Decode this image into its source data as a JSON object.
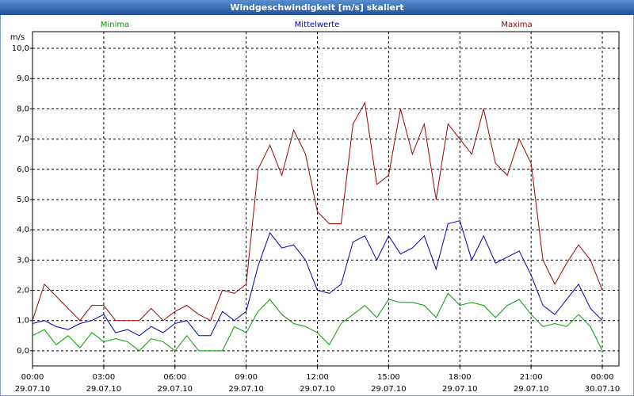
{
  "chart_data": {
    "type": "line",
    "title": "Windgeschwindigkeit [m/s] skaliert",
    "y_label": "m/s",
    "x": [
      0,
      0.5,
      1,
      1.5,
      2,
      2.5,
      3,
      3.5,
      4,
      4.5,
      5,
      5.5,
      6,
      6.5,
      7,
      7.5,
      8,
      8.5,
      9,
      9.5,
      10,
      10.5,
      11,
      11.5,
      12,
      12.5,
      13,
      13.5,
      14,
      14.5,
      15,
      15.5,
      16,
      16.5,
      17,
      17.5,
      18,
      18.5,
      19,
      19.5,
      20,
      20.5,
      21,
      21.5,
      22,
      22.5,
      23,
      23.5,
      24
    ],
    "series": [
      {
        "name": "Minima",
        "color": "#00a000",
        "values": [
          0.5,
          0.7,
          0.2,
          0.5,
          0.1,
          0.6,
          0.3,
          0.4,
          0.3,
          0.0,
          0.4,
          0.3,
          0.0,
          0.5,
          0.0,
          0.0,
          0.0,
          0.8,
          0.6,
          1.3,
          1.7,
          1.2,
          0.9,
          0.8,
          0.6,
          0.2,
          0.9,
          1.2,
          1.5,
          1.1,
          1.7,
          1.6,
          1.6,
          1.5,
          1.1,
          1.9,
          1.5,
          1.6,
          1.5,
          1.1,
          1.5,
          1.7,
          1.2,
          0.8,
          0.9,
          0.8,
          1.2,
          0.8,
          0.0
        ]
      },
      {
        "name": "Mittelwerte",
        "color": "#0000c0",
        "values": [
          0.9,
          1.0,
          0.8,
          0.7,
          0.9,
          1.0,
          1.2,
          0.6,
          0.7,
          0.5,
          0.8,
          0.6,
          0.9,
          1.0,
          0.5,
          0.5,
          1.3,
          1.0,
          1.3,
          2.8,
          3.9,
          3.4,
          3.5,
          3.0,
          2.0,
          1.9,
          2.2,
          3.6,
          3.8,
          3.0,
          3.8,
          3.2,
          3.4,
          3.8,
          2.7,
          4.2,
          4.3,
          3.0,
          3.8,
          2.9,
          3.1,
          3.3,
          2.5,
          1.5,
          1.2,
          1.7,
          2.2,
          1.4,
          1.0
        ]
      },
      {
        "name": "Maxima",
        "color": "#a00000",
        "values": [
          1.0,
          2.2,
          1.8,
          1.4,
          1.0,
          1.5,
          1.5,
          1.0,
          1.0,
          1.0,
          1.4,
          1.0,
          1.3,
          1.5,
          1.2,
          1.0,
          2.0,
          1.9,
          2.2,
          6.0,
          6.8,
          5.8,
          7.3,
          6.5,
          4.6,
          4.2,
          4.2,
          7.5,
          8.2,
          5.5,
          5.8,
          8.0,
          6.5,
          7.5,
          5.0,
          7.5,
          7.0,
          6.5,
          8.0,
          6.2,
          5.8,
          7.0,
          6.2,
          3.0,
          2.2,
          2.9,
          3.5,
          3.0,
          2.0
        ]
      }
    ],
    "xlim": [
      0,
      24.7
    ],
    "xticks": [
      {
        "value": 0,
        "label": "00:00",
        "sublabel": "29.07.10"
      },
      {
        "value": 3,
        "label": "03:00",
        "sublabel": "29.07.10"
      },
      {
        "value": 6,
        "label": "06:00",
        "sublabel": "29.07.10"
      },
      {
        "value": 9,
        "label": "09:00",
        "sublabel": "29.07.10"
      },
      {
        "value": 12,
        "label": "12:00",
        "sublabel": "29.07.10"
      },
      {
        "value": 15,
        "label": "15:00",
        "sublabel": "29.07.10"
      },
      {
        "value": 18,
        "label": "18:00",
        "sublabel": "29.07.10"
      },
      {
        "value": 21,
        "label": "21:00",
        "sublabel": "29.07.10"
      },
      {
        "value": 24,
        "label": "00:00",
        "sublabel": "30.07.10"
      }
    ],
    "ylim": [
      -0.5,
      10.55
    ],
    "yticks": [
      {
        "value": 0,
        "label": "0,0"
      },
      {
        "value": 1,
        "label": "1,0"
      },
      {
        "value": 2,
        "label": "2,0"
      },
      {
        "value": 3,
        "label": "3,0"
      },
      {
        "value": 4,
        "label": "4,0"
      },
      {
        "value": 5,
        "label": "5,0"
      },
      {
        "value": 6,
        "label": "6,0"
      },
      {
        "value": 7,
        "label": "7,0"
      },
      {
        "value": 8,
        "label": "8,0"
      },
      {
        "value": 9,
        "label": "9,0"
      },
      {
        "value": 10,
        "label": "10,0"
      }
    ],
    "grid": true
  }
}
